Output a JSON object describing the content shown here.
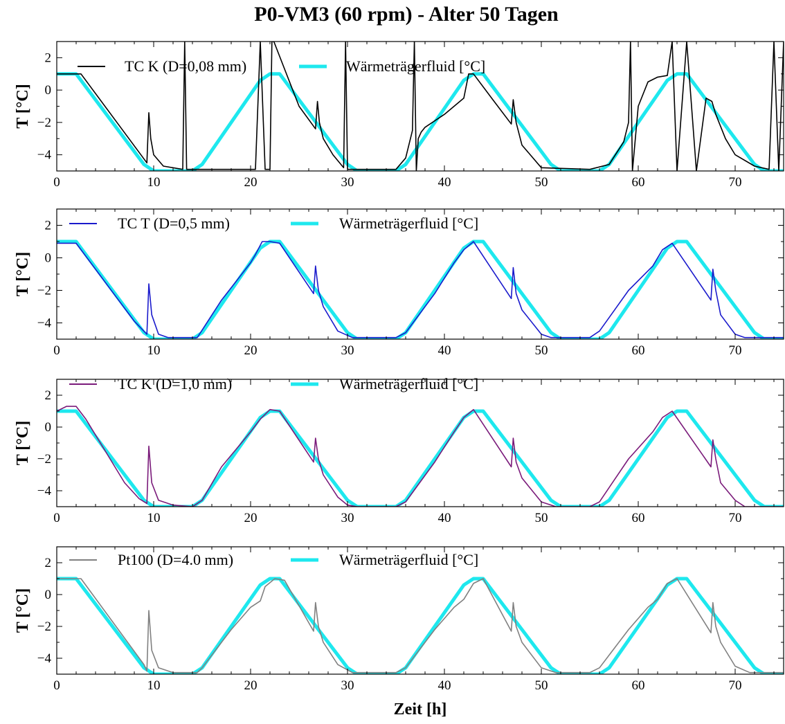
{
  "title": "P0-VM3 (60 rpm) - Alter 50 Tagen",
  "colors": {
    "fluid": "#1ee8ee",
    "black": "#000000",
    "blue": "#1a1acc",
    "purple": "#7a1a7a",
    "gray": "#808080"
  },
  "chart_data": [
    {
      "type": "line",
      "xlabel": "",
      "ylabel": "T [°C]",
      "xlim": [
        0,
        75
      ],
      "ylim": [
        -5,
        3
      ],
      "xticks": [
        "0",
        "10",
        "20",
        "30",
        "40",
        "50",
        "60",
        "70"
      ],
      "yticks": [
        "2",
        "0",
        "-2",
        "-4"
      ],
      "series": [
        {
          "name": "TC K (D=0,08 mm)",
          "color": "#000000",
          "x": [
            0,
            2.5,
            9.3,
            9.5,
            9.7,
            10,
            11,
            13,
            13.2,
            13.4,
            20.5,
            21,
            21.5,
            22,
            22.2,
            22.4,
            25,
            26.7,
            26.9,
            27.1,
            27.5,
            28.5,
            29.6,
            29.8,
            30,
            35,
            36,
            36.7,
            36.9,
            37.1,
            37.3,
            37.6,
            38,
            40,
            42,
            42.5,
            43,
            45,
            46.9,
            47.1,
            47.4,
            48,
            50,
            55,
            57,
            58.5,
            59,
            59.2,
            59.4,
            60,
            61,
            62,
            63,
            63.5,
            64,
            65,
            66,
            67,
            67.6,
            68,
            69,
            70,
            72,
            73.5,
            74,
            74.5,
            75
          ],
          "y": [
            1,
            1,
            -4.5,
            -1.4,
            -3,
            -4,
            -4.7,
            -4.9,
            3,
            -4.9,
            -4.9,
            3,
            -4.9,
            -4.9,
            3,
            3,
            -1,
            -2.4,
            -0.7,
            -2,
            -3,
            -4,
            -4.8,
            3,
            -4.9,
            -4.9,
            -4.2,
            -2.5,
            3,
            -5,
            -3,
            -2.6,
            -2.3,
            -1.5,
            -0.5,
            1,
            1,
            -0.6,
            -2.1,
            -0.6,
            -2,
            -3.4,
            -4.8,
            -4.9,
            -4.6,
            -3.2,
            -2,
            3,
            -5,
            -1,
            0.5,
            0.8,
            0.9,
            3,
            -5,
            3,
            -5,
            -0.5,
            -0.7,
            -1.5,
            -3,
            -4,
            -4.7,
            -4.9,
            3,
            -5,
            3
          ]
        },
        {
          "name": "Wärmeträgerfluid [°C]",
          "color": "#1ee8ee",
          "x": [
            0,
            2,
            9,
            10,
            14,
            15,
            21,
            22,
            23,
            30,
            31,
            35,
            36,
            42,
            43,
            44,
            51,
            52,
            56,
            57,
            63,
            64,
            65,
            72,
            73,
            75
          ],
          "y": [
            1,
            1,
            -4.6,
            -5,
            -5,
            -4.6,
            0.6,
            1,
            1,
            -4.6,
            -5,
            -5,
            -4.6,
            0.6,
            1,
            1,
            -4.6,
            -5,
            -5,
            -4.6,
            0.6,
            1,
            1,
            -4.6,
            -5,
            -5
          ]
        }
      ]
    },
    {
      "type": "line",
      "xlabel": "",
      "ylabel": "T [°C]",
      "xlim": [
        0,
        75
      ],
      "ylim": [
        -5,
        3
      ],
      "xticks": [
        "0",
        "10",
        "20",
        "30",
        "40",
        "50",
        "60",
        "70"
      ],
      "yticks": [
        "2",
        "0",
        "-2",
        "-4"
      ],
      "series": [
        {
          "name": "TC T (D=0,5 mm)",
          "color": "#1a1acc",
          "x": [
            0,
            2,
            5,
            8,
            9.3,
            9.5,
            9.8,
            10.5,
            11.5,
            13,
            14.5,
            17,
            20,
            20.5,
            21.2,
            22,
            23,
            26.5,
            26.7,
            27,
            27.5,
            29,
            30.5,
            32,
            35,
            36,
            39,
            41,
            42,
            43,
            46.9,
            47.1,
            47.4,
            48,
            50,
            51,
            55,
            56,
            59,
            61.5,
            62.5,
            63.5,
            67.5,
            67.7,
            68,
            68.5,
            70,
            71,
            73,
            75
          ],
          "y": [
            0.9,
            0.9,
            -1.5,
            -3.9,
            -4.7,
            -1.6,
            -3.5,
            -4.7,
            -4.9,
            -4.9,
            -4.9,
            -2.6,
            -0.3,
            0.2,
            1,
            1,
            0.9,
            -2.2,
            -0.5,
            -2,
            -3,
            -4.5,
            -4.9,
            -4.9,
            -4.9,
            -4.6,
            -2.2,
            -0.3,
            0.5,
            1,
            -2.5,
            -0.6,
            -2.2,
            -3.2,
            -4.7,
            -4.9,
            -4.9,
            -4.5,
            -2,
            -0.5,
            0.5,
            0.9,
            -2.6,
            -0.7,
            -2,
            -3.5,
            -4.7,
            -4.9,
            -4.9,
            -4.9
          ]
        },
        {
          "name": "Wärmeträgerfluid [°C]",
          "color": "#1ee8ee",
          "x": [
            0,
            2,
            9,
            10,
            14,
            15,
            21,
            22,
            23,
            30,
            31,
            35,
            36,
            42,
            43,
            44,
            51,
            52,
            56,
            57,
            63,
            64,
            65,
            72,
            73,
            75
          ],
          "y": [
            1,
            1,
            -4.6,
            -5,
            -5,
            -4.6,
            0.6,
            1,
            1,
            -4.6,
            -5,
            -5,
            -4.6,
            0.6,
            1,
            1,
            -4.6,
            -5,
            -5,
            -4.6,
            0.6,
            1,
            1,
            -4.6,
            -5,
            -5
          ]
        }
      ]
    },
    {
      "type": "line",
      "xlabel": "",
      "ylabel": "T [°C]",
      "xlim": [
        0,
        75
      ],
      "ylim": [
        -5,
        3
      ],
      "xticks": [
        "0",
        "10",
        "20",
        "30",
        "40",
        "50",
        "60",
        "70"
      ],
      "yticks": [
        "2",
        "0",
        "-2",
        "-4"
      ],
      "series": [
        {
          "name": "TC K (D=1,0 mm)",
          "color": "#7a1a7a",
          "x": [
            0,
            1,
            2,
            3,
            5,
            7,
            8.5,
            9.3,
            9.5,
            9.8,
            10.5,
            12,
            14,
            15,
            17,
            20,
            21,
            22,
            23,
            26.5,
            26.7,
            27,
            27.5,
            29,
            30,
            31,
            35,
            36,
            39,
            41,
            42,
            43,
            46.9,
            47.1,
            47.4,
            48,
            50,
            51.5,
            55,
            56,
            59,
            61.5,
            62.5,
            63.5,
            67.5,
            67.7,
            68,
            68.5,
            70,
            71,
            73,
            75
          ],
          "y": [
            1,
            1.3,
            1.3,
            0.5,
            -1.5,
            -3.5,
            -4.5,
            -4.8,
            -1.2,
            -3.5,
            -4.6,
            -4.9,
            -5,
            -4.6,
            -2.5,
            -0.3,
            0.5,
            1.1,
            1,
            -2.2,
            -0.7,
            -2,
            -3,
            -4.4,
            -4.9,
            -5,
            -5,
            -4.7,
            -2.2,
            -0.3,
            0.6,
            1.1,
            -2.5,
            -0.7,
            -2.2,
            -3.2,
            -4.7,
            -5,
            -5,
            -4.7,
            -2,
            -0.3,
            0.6,
            1,
            -2.5,
            -0.8,
            -2,
            -3.5,
            -4.6,
            -5,
            -5,
            -5
          ]
        },
        {
          "name": "Wärmeträgerfluid [°C]",
          "color": "#1ee8ee",
          "x": [
            0,
            2,
            9,
            10,
            14,
            15,
            21,
            22,
            23,
            30,
            31,
            35,
            36,
            42,
            43,
            44,
            51,
            52,
            56,
            57,
            63,
            64,
            65,
            72,
            73,
            75
          ],
          "y": [
            1,
            1,
            -4.6,
            -5,
            -5,
            -4.6,
            0.6,
            1,
            1,
            -4.6,
            -5,
            -5,
            -4.6,
            0.6,
            1,
            1,
            -4.6,
            -5,
            -5,
            -4.6,
            0.6,
            1,
            1,
            -4.6,
            -5,
            -5
          ]
        }
      ]
    },
    {
      "type": "line",
      "xlabel": "Zeit [h]",
      "ylabel": "T [°C]",
      "xlim": [
        0,
        75
      ],
      "ylim": [
        -5,
        3
      ],
      "xticks": [
        "0",
        "10",
        "20",
        "30",
        "40",
        "50",
        "60",
        "70"
      ],
      "yticks": [
        "2",
        "0",
        "-2",
        "-4"
      ],
      "series": [
        {
          "name": "Pt100 (D=4.0 mm)",
          "color": "#808080",
          "x": [
            0,
            2.5,
            9,
            9.3,
            9.5,
            9.8,
            10.5,
            12,
            14.5,
            15,
            18,
            20,
            21,
            21.5,
            22.5,
            23.5,
            26.5,
            26.7,
            27,
            27.5,
            29,
            30.5,
            35,
            36,
            39,
            41,
            42,
            43,
            44,
            46.9,
            47.1,
            47.4,
            48,
            50,
            51.5,
            55,
            56,
            59,
            61,
            62,
            63,
            64,
            67.5,
            67.7,
            68,
            68.5,
            70,
            71.5,
            75
          ],
          "y": [
            1,
            1,
            -4.4,
            -4.8,
            -1,
            -3.5,
            -4.6,
            -4.9,
            -4.9,
            -4.6,
            -2.2,
            -0.8,
            -0.4,
            0.5,
            1,
            0.9,
            -2.3,
            -0.5,
            -2,
            -3,
            -4.4,
            -4.9,
            -4.9,
            -4.6,
            -2.2,
            -0.8,
            -0.3,
            0.7,
            1,
            -2.3,
            -0.5,
            -2,
            -3,
            -4.6,
            -4.9,
            -4.9,
            -4.6,
            -2.2,
            -0.8,
            -0.3,
            0.7,
            1,
            -2.4,
            -0.5,
            -2,
            -3,
            -4.5,
            -4.9,
            -4.9
          ]
        },
        {
          "name": "Wärmeträgerfluid [°C]",
          "color": "#1ee8ee",
          "x": [
            0,
            2,
            9,
            10,
            14,
            15,
            21,
            22,
            23,
            30,
            31,
            35,
            36,
            42,
            43,
            44,
            51,
            52,
            56,
            57,
            63,
            64,
            65,
            72,
            73,
            75
          ],
          "y": [
            1,
            1,
            -4.6,
            -5,
            -5,
            -4.6,
            0.6,
            1,
            1,
            -4.6,
            -5,
            -5,
            -4.6,
            0.6,
            1,
            1,
            -4.6,
            -5,
            -5,
            -4.6,
            0.6,
            1,
            1,
            -4.6,
            -5,
            -5
          ]
        }
      ]
    }
  ]
}
